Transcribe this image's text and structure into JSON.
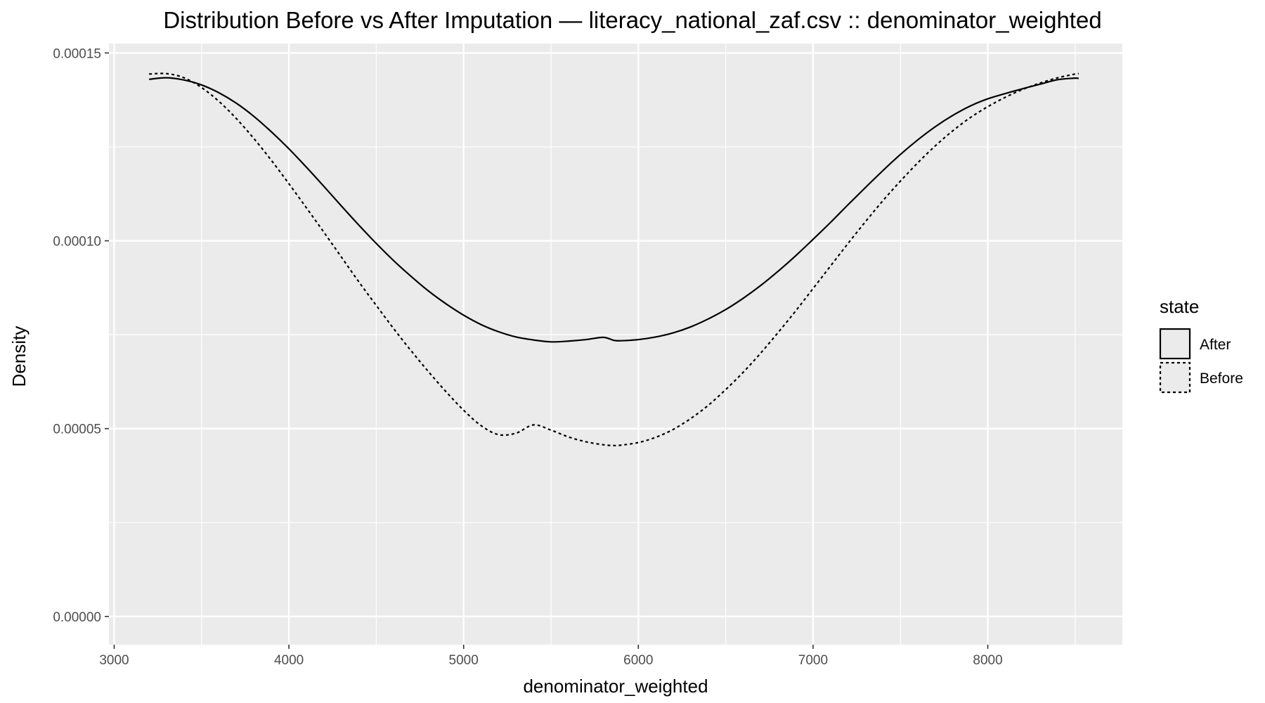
{
  "chart_data": {
    "type": "line",
    "title": "Distribution Before vs After Imputation — literacy_national_zaf.csv :: denominator_weighted",
    "xlabel": "denominator_weighted",
    "ylabel": "Density",
    "xlim": [
      2970,
      8770
    ],
    "ylim": [
      -7.5e-06,
      0.0001525
    ],
    "x_ticks": [
      3000,
      4000,
      5000,
      6000,
      7000,
      8000
    ],
    "x_tick_labels": [
      "3000",
      "4000",
      "5000",
      "6000",
      "7000",
      "8000"
    ],
    "y_ticks": [
      0,
      5e-05,
      0.0001,
      0.00015
    ],
    "y_tick_labels": [
      "0.00000",
      "0.00005",
      "0.00010",
      "0.00015"
    ],
    "grid": true,
    "legend": {
      "title": "state",
      "position": "right",
      "entries": [
        {
          "label": "After",
          "linetype": "solid"
        },
        {
          "label": "Before",
          "linetype": "dashed"
        }
      ]
    },
    "series": [
      {
        "name": "After",
        "linetype": "solid",
        "color": "#000000",
        "x": [
          3200,
          3300,
          3400,
          3500,
          3600,
          3700,
          3800,
          3900,
          4000,
          4100,
          4200,
          4300,
          4400,
          4500,
          4600,
          4700,
          4800,
          4900,
          5000,
          5100,
          5200,
          5300,
          5400,
          5500,
          5600,
          5700,
          5800,
          5860,
          5900,
          6000,
          6100,
          6200,
          6300,
          6400,
          6500,
          6600,
          6700,
          6800,
          6900,
          7000,
          7100,
          7200,
          7300,
          7400,
          7500,
          7600,
          7700,
          7800,
          7900,
          8000,
          8100,
          8200,
          8300,
          8400,
          8500,
          8520
        ],
        "y": [
          0.000143,
          0.0001434,
          0.0001428,
          0.0001415,
          0.0001394,
          0.0001366,
          0.0001331,
          0.000129,
          0.0001245,
          0.0001196,
          0.0001145,
          0.0001093,
          0.0001042,
          9.93e-05,
          9.47e-05,
          9.05e-05,
          8.66e-05,
          8.32e-05,
          8.02e-05,
          7.77e-05,
          7.58e-05,
          7.44e-05,
          7.36e-05,
          7.31e-05,
          7.33e-05,
          7.37e-05,
          7.43e-05,
          7.35e-05,
          7.34e-05,
          7.37e-05,
          7.44e-05,
          7.55e-05,
          7.71e-05,
          7.92e-05,
          8.17e-05,
          8.47e-05,
          8.81e-05,
          9.19e-05,
          9.6e-05,
          0.0001004,
          0.0001049,
          0.0001096,
          0.0001142,
          0.0001187,
          0.000123,
          0.0001269,
          0.0001304,
          0.0001334,
          0.0001359,
          0.0001378,
          0.0001392,
          0.0001405,
          0.0001417,
          0.0001429,
          0.0001433,
          0.0001432
        ]
      },
      {
        "name": "Before",
        "linetype": "dashed",
        "color": "#000000",
        "x": [
          3200,
          3300,
          3400,
          3500,
          3600,
          3700,
          3800,
          3900,
          4000,
          4100,
          4200,
          4300,
          4400,
          4500,
          4600,
          4700,
          4800,
          4900,
          5000,
          5100,
          5200,
          5300,
          5400,
          5500,
          5600,
          5700,
          5800,
          5860,
          5900,
          6000,
          6100,
          6200,
          6300,
          6400,
          6500,
          6600,
          6700,
          6800,
          6900,
          7000,
          7100,
          7200,
          7300,
          7400,
          7500,
          7600,
          7700,
          7800,
          7900,
          8000,
          8100,
          8200,
          8300,
          8400,
          8500,
          8520
        ],
        "y": [
          0.0001444,
          0.0001445,
          0.0001434,
          0.0001408,
          0.0001371,
          0.0001325,
          0.0001272,
          0.0001214,
          0.0001152,
          0.0001088,
          0.0001023,
          9.57e-05,
          8.91e-05,
          8.28e-05,
          7.66e-05,
          7.07e-05,
          6.51e-05,
          5.98e-05,
          5.49e-05,
          5.08e-05,
          4.84e-05,
          4.88e-05,
          5.1e-05,
          4.96e-05,
          4.78e-05,
          4.65e-05,
          4.57e-05,
          4.55e-05,
          4.56e-05,
          4.63e-05,
          4.77e-05,
          4.98e-05,
          5.27e-05,
          5.62e-05,
          6.04e-05,
          6.5e-05,
          7.01e-05,
          7.56e-05,
          8.13e-05,
          8.73e-05,
          9.33e-05,
          9.93e-05,
          0.0001051,
          0.0001107,
          0.0001159,
          0.0001208,
          0.0001253,
          0.0001293,
          0.0001328,
          0.0001357,
          0.0001382,
          0.0001403,
          0.000142,
          0.0001434,
          0.0001444,
          0.0001445
        ]
      }
    ]
  }
}
